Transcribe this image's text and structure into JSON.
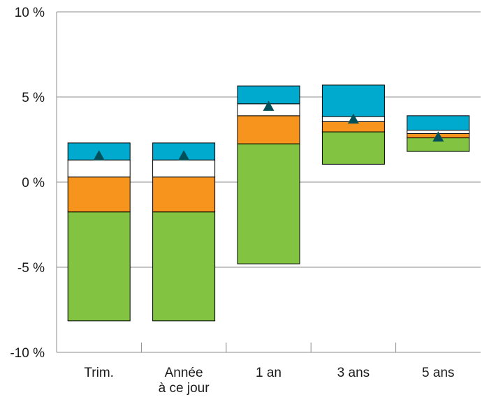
{
  "chart_data": {
    "type": "bar",
    "subtype": "floating-stacked-range",
    "title": "",
    "xlabel": "",
    "ylabel": "",
    "ylim": [
      -10,
      10
    ],
    "yticks": [
      10,
      5,
      0,
      -5,
      -10
    ],
    "ytick_labels": [
      "10 %",
      "5 %",
      "0 %",
      "-5 %",
      "-10 %"
    ],
    "grid": true,
    "legend": "none",
    "categories": [
      {
        "label": [
          "Trim."
        ]
      },
      {
        "label": [
          "Année",
          "à ce jour"
        ]
      },
      {
        "label": [
          "1 an"
        ]
      },
      {
        "label": [
          "3 ans"
        ]
      },
      {
        "label": [
          "5 ans"
        ]
      }
    ],
    "band_colors": [
      "#82c341",
      "#f7941d",
      "#ffffff",
      "#00a9ce"
    ],
    "band_edges": [
      [
        -8.15,
        -1.75,
        0.3,
        1.3,
        2.3
      ],
      [
        -8.15,
        -1.75,
        0.3,
        1.3,
        2.3
      ],
      [
        -4.8,
        2.25,
        3.9,
        4.6,
        5.65
      ],
      [
        1.05,
        2.95,
        3.55,
        3.85,
        5.7
      ],
      [
        1.8,
        2.6,
        2.85,
        3.05,
        3.9
      ]
    ],
    "markers": [
      1.55,
      1.55,
      4.45,
      3.7,
      2.65
    ],
    "marker_color": "#00505a"
  }
}
